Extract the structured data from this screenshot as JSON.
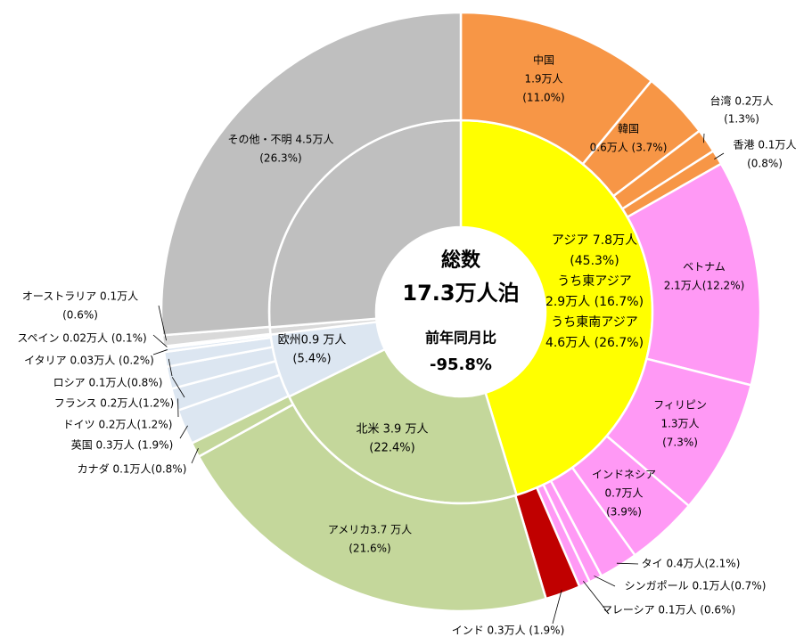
{
  "chart_data": {
    "type": "sunburst",
    "center": [
      "総数",
      "17.3万人泊",
      "前年同月比",
      "-95.8%"
    ],
    "rings": [
      {
        "segments": [
          {
            "label": [
              "アジア 7.8万人",
              "(45.3%)",
              "うち東アジア",
              "2.9万人 (16.7%)",
              "うち東南アジア",
              "4.6万人 (26.7%)"
            ],
            "value": 45.3,
            "color": "#ffff00"
          },
          {
            "label": [
              "北米 3.9 万人",
              "(22.4%)"
            ],
            "value": 22.4,
            "color": "#c4d79b"
          },
          {
            "label": [
              "欧州0.9 万人",
              "(5.4%)"
            ],
            "value": 5.4,
            "color": "#dce6f1"
          },
          {
            "label": null,
            "value": 0.6,
            "color": "#d9d9d9"
          },
          {
            "label": [
              "その他・不明 4.5万人",
              "(26.3%)"
            ],
            "value": 26.3,
            "color": "#bfbfbf"
          }
        ]
      },
      {
        "segments": [
          {
            "label": [
              "中国",
              "1.9万人",
              "(11.0%)"
            ],
            "value": 11.0,
            "color": "#f79646"
          },
          {
            "label": [
              "韓国",
              "0.6万人 (3.7%)"
            ],
            "value": 3.7,
            "color": "#f79646"
          },
          {
            "label": [
              "台湾 0.2万人",
              "(1.3%)"
            ],
            "value": 1.3,
            "color": "#f79646"
          },
          {
            "label": [
              "香港 0.1万人",
              "(0.8%)"
            ],
            "value": 0.8,
            "color": "#f79646"
          },
          {
            "label": [
              "ベトナム",
              "2.1万人(12.2%)"
            ],
            "value": 12.2,
            "color": "#ff99f5"
          },
          {
            "label": [
              "フィリピン",
              "1.3万人",
              "(7.3%)"
            ],
            "value": 7.3,
            "color": "#ff99f5"
          },
          {
            "label": [
              "インドネシア",
              "0.7万人",
              "(3.9%)"
            ],
            "value": 3.9,
            "color": "#ff99f5"
          },
          {
            "label": [
              "タイ 0.4万人(2.1%)"
            ],
            "value": 2.1,
            "color": "#ff99f5"
          },
          {
            "label": [
              "シンガポール 0.1万人(0.7%)"
            ],
            "value": 0.7,
            "color": "#ff99f5"
          },
          {
            "label": [
              "マレーシア 0.1万人 (0.6%)"
            ],
            "value": 0.6,
            "color": "#ff99f5"
          },
          {
            "label": [
              "インド 0.3万人 (1.9%)"
            ],
            "value": 1.9,
            "color": "#c00000"
          },
          {
            "label": [
              "アメリカ3.7 万人",
              "(21.6%)"
            ],
            "value": 21.6,
            "color": "#c4d79b"
          },
          {
            "label": [
              "カナダ 0.1万人(0.8%)"
            ],
            "value": 0.8,
            "color": "#c4d79b"
          },
          {
            "label": [
              "英国 0.3万人 (1.9%)"
            ],
            "value": 1.9,
            "color": "#dce6f1"
          },
          {
            "label": [
              "ドイツ 0.2万人(1.2%)"
            ],
            "value": 1.2,
            "color": "#dce6f1"
          },
          {
            "label": [
              "フランス 0.2万人(1.2%)"
            ],
            "value": 1.2,
            "color": "#dce6f1"
          },
          {
            "label": [
              "ロシア 0.1万人(0.8%)"
            ],
            "value": 0.8,
            "color": "#dce6f1"
          },
          {
            "label": [
              "イタリア 0.03万人 (0.2%)"
            ],
            "value": 0.2,
            "color": "#dce6f1"
          },
          {
            "label": [
              "スペイン 0.02万人 (0.1%)"
            ],
            "value": 0.1,
            "color": "#dce6f1"
          },
          {
            "label": [
              "オーストラリア 0.1万人",
              "(0.6%)"
            ],
            "value": 0.6,
            "color": "#d9d9d9"
          },
          {
            "label": [
              "その他・不明 4.5万人",
              "(26.3%)"
            ],
            "value": 26.3,
            "color": "#bfbfbf"
          }
        ]
      }
    ]
  }
}
